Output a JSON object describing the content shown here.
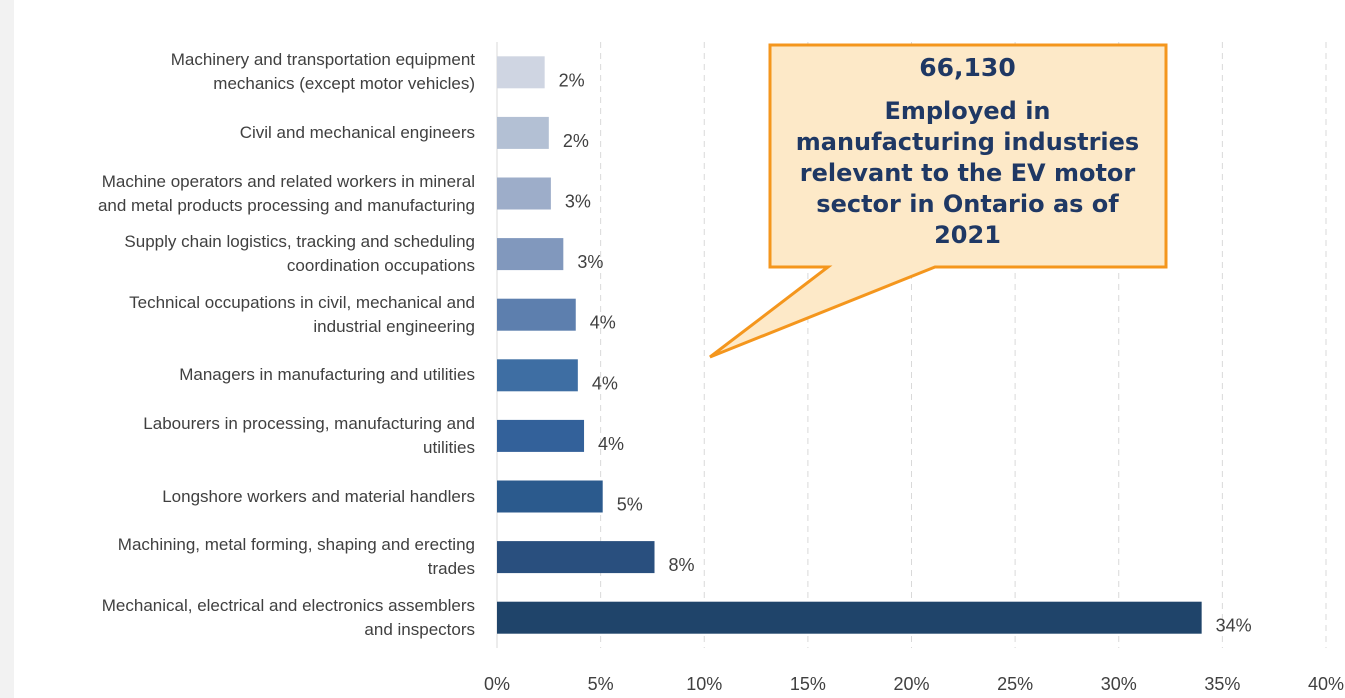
{
  "chart_data": {
    "type": "bar",
    "orientation": "horizontal",
    "categories": [
      "Machinery and transportation equipment\nmechanics (except motor vehicles)",
      "Civil and mechanical engineers",
      "Machine operators and related workers in mineral\nand metal products processing and manufacturing",
      "Supply chain logistics, tracking and scheduling\ncoordination occupations",
      "Technical occupations in civil, mechanical and\nindustrial engineering",
      "Managers in manufacturing and utilities",
      "Labourers in processing, manufacturing and\nutilities",
      "Longshore workers and material handlers",
      "Machining, metal forming, shaping and erecting\ntrades",
      "Mechanical, electrical and electronics assemblers\nand inspectors"
    ],
    "values": [
      2.3,
      2.5,
      2.6,
      3.2,
      3.8,
      3.9,
      4.2,
      5.1,
      7.6,
      34.0
    ],
    "value_labels": [
      "2%",
      "2%",
      "3%",
      "3%",
      "4%",
      "4%",
      "4%",
      "5%",
      "8%",
      "34%"
    ],
    "xlim": [
      0,
      40
    ],
    "xticks": [
      "0%",
      "5%",
      "10%",
      "15%",
      "20%",
      "25%",
      "30%",
      "35%",
      "40%"
    ],
    "grid": "vertical dashed",
    "bar_colors": [
      "#cfd5e2",
      "#b3c0d4",
      "#9dadc9",
      "#8198bd",
      "#5d7fae",
      "#3e6ea3",
      "#33619a",
      "#2b5a8d",
      "#294f7e",
      "#1f446a"
    ],
    "annotation": {
      "number": "66,130",
      "text": "Employed in manufacturing industries relevant to the EV motor sector in Ontario as of 2021"
    }
  },
  "colors": {
    "callout_fill": "#fde9c8",
    "callout_border": "#f4961d",
    "callout_text": "#1f3864"
  }
}
